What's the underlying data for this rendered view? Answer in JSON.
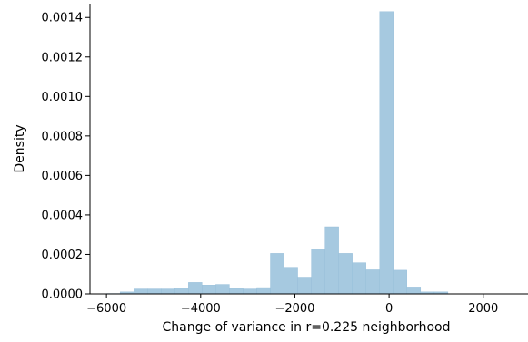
{
  "chart_data": {
    "type": "histogram",
    "title": "",
    "xlabel": "Change of variance in r=0.225 neighborhood",
    "ylabel": "Density",
    "xlim": [
      -6350,
      2950
    ],
    "ylim": [
      0,
      0.00147
    ],
    "bar_color": "#a6c9e0",
    "bar_edge_color": "#94bcd8",
    "grid": false,
    "legend": "none",
    "x_ticks": [
      {
        "value": -6000,
        "label": "−6000"
      },
      {
        "value": -4000,
        "label": "−4000"
      },
      {
        "value": -2000,
        "label": "−2000"
      },
      {
        "value": 0,
        "label": "0"
      },
      {
        "value": 2000,
        "label": "2000"
      }
    ],
    "y_ticks": [
      {
        "value": 0.0,
        "label": "0.0000"
      },
      {
        "value": 0.0002,
        "label": "0.0002"
      },
      {
        "value": 0.0004,
        "label": "0.0004"
      },
      {
        "value": 0.0006,
        "label": "0.0006"
      },
      {
        "value": 0.0008,
        "label": "0.0008"
      },
      {
        "value": 0.001,
        "label": "0.0010"
      },
      {
        "value": 0.0012,
        "label": "0.0012"
      },
      {
        "value": 0.0014,
        "label": "0.0014"
      }
    ],
    "bins": [
      {
        "x0": -6000,
        "x1": -5710,
        "value": 2e-06
      },
      {
        "x0": -5710,
        "x1": -5420,
        "value": 1e-05
      },
      {
        "x0": -5420,
        "x1": -5130,
        "value": 2.5e-05
      },
      {
        "x0": -5130,
        "x1": -4840,
        "value": 2.5e-05
      },
      {
        "x0": -4840,
        "x1": -4550,
        "value": 2.5e-05
      },
      {
        "x0": -4550,
        "x1": -4260,
        "value": 3e-05
      },
      {
        "x0": -4260,
        "x1": -3970,
        "value": 5.8e-05
      },
      {
        "x0": -3970,
        "x1": -3680,
        "value": 4.5e-05
      },
      {
        "x0": -3680,
        "x1": -3390,
        "value": 4.8e-05
      },
      {
        "x0": -3390,
        "x1": -3100,
        "value": 2.8e-05
      },
      {
        "x0": -3100,
        "x1": -2810,
        "value": 2.5e-05
      },
      {
        "x0": -2810,
        "x1": -2520,
        "value": 3.2e-05
      },
      {
        "x0": -2520,
        "x1": -2230,
        "value": 0.000205
      },
      {
        "x0": -2230,
        "x1": -1940,
        "value": 0.000135
      },
      {
        "x0": -1940,
        "x1": -1650,
        "value": 8.5e-05
      },
      {
        "x0": -1650,
        "x1": -1360,
        "value": 0.000228
      },
      {
        "x0": -1360,
        "x1": -1070,
        "value": 0.00034
      },
      {
        "x0": -1070,
        "x1": -780,
        "value": 0.000205
      },
      {
        "x0": -780,
        "x1": -490,
        "value": 0.000158
      },
      {
        "x0": -490,
        "x1": -200,
        "value": 0.000122
      },
      {
        "x0": -200,
        "x1": 90,
        "value": 0.00143
      },
      {
        "x0": 90,
        "x1": 380,
        "value": 0.00012
      },
      {
        "x0": 380,
        "x1": 670,
        "value": 3.5e-05
      },
      {
        "x0": 670,
        "x1": 960,
        "value": 1e-05
      },
      {
        "x0": 960,
        "x1": 1250,
        "value": 1e-05
      }
    ]
  }
}
